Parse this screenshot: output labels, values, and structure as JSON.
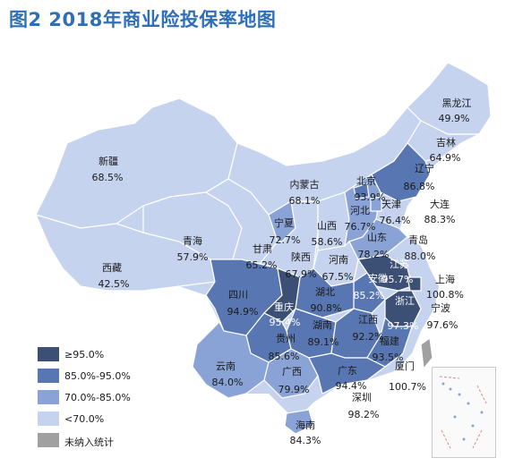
{
  "title": "图2 2018年商业险投保率地图",
  "colors": {
    "c1": "#3c4f75",
    "c2": "#5877b2",
    "c3": "#8aa3d6",
    "c4": "#c5d3ee",
    "c5": "#a0a0a0"
  },
  "legend": [
    {
      "label": "≥95.0%",
      "color": "#3c4f75"
    },
    {
      "label": "85.0%-95.0%",
      "color": "#5877b2"
    },
    {
      "label": "70.0%-85.0%",
      "color": "#8aa3d6"
    },
    {
      "label": "<70.0%",
      "color": "#c5d3ee"
    },
    {
      "label": "未纳入统计",
      "color": "#a0a0a0"
    }
  ],
  "regions": [
    {
      "name": "黑龙江",
      "value": "49.9%"
    },
    {
      "name": "吉林",
      "value": "64.9%"
    },
    {
      "name": "辽宁",
      "value": "86.8%"
    },
    {
      "name": "大连",
      "value": "88.3%"
    },
    {
      "name": "新疆",
      "value": "68.5%"
    },
    {
      "name": "内蒙古",
      "value": "68.1%"
    },
    {
      "name": "北京",
      "value": "93.9%"
    },
    {
      "name": "天津",
      "value": "76.4%"
    },
    {
      "name": "河北",
      "value": "76.7%"
    },
    {
      "name": "宁夏",
      "value": "72.7%"
    },
    {
      "name": "山西",
      "value": "58.6%"
    },
    {
      "name": "山东",
      "value": "78.2%"
    },
    {
      "name": "青岛",
      "value": "88.0%"
    },
    {
      "name": "青海",
      "value": "57.9%"
    },
    {
      "name": "甘肃",
      "value": "65.2%"
    },
    {
      "name": "陕西",
      "value": "67.9%"
    },
    {
      "name": "河南",
      "value": "67.5%"
    },
    {
      "name": "江苏",
      "value": "95.7%"
    },
    {
      "name": "上海",
      "value": "100.8%"
    },
    {
      "name": "西藏",
      "value": "42.5%"
    },
    {
      "name": "四川",
      "value": "94.9%"
    },
    {
      "name": "安徽",
      "value": "85.2%"
    },
    {
      "name": "湖北",
      "value": "90.8%"
    },
    {
      "name": "浙江",
      "value": "97.3%"
    },
    {
      "name": "宁波",
      "value": "97.6%"
    },
    {
      "name": "重庆",
      "value": "95.4%"
    },
    {
      "name": "湖南",
      "value": "89.1%"
    },
    {
      "name": "江西",
      "value": "92.2%"
    },
    {
      "name": "贵州",
      "value": "85.6%"
    },
    {
      "name": "福建",
      "value": "93.5%"
    },
    {
      "name": "云南",
      "value": "84.0%"
    },
    {
      "name": "广西",
      "value": "79.9%"
    },
    {
      "name": "广东",
      "value": "94.4%"
    },
    {
      "name": "厦门",
      "value": "100.7%"
    },
    {
      "name": "深圳",
      "value": "98.2%"
    },
    {
      "name": "海南",
      "value": "84.3%"
    }
  ]
}
